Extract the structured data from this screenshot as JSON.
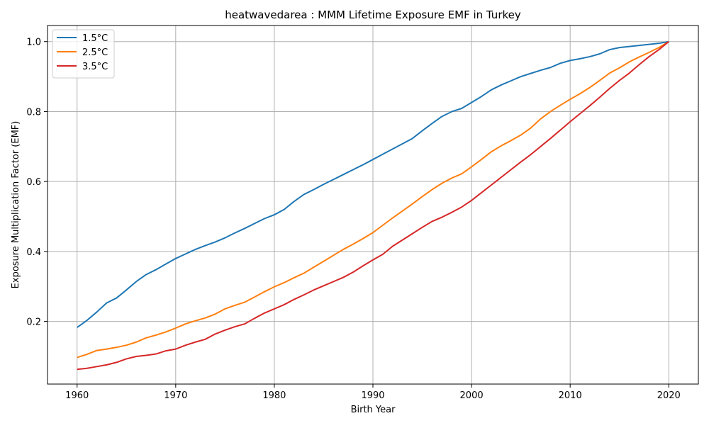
{
  "chart_data": {
    "type": "line",
    "title": "heatwavedarea : MMM Lifetime Exposure EMF in Turkey",
    "xlabel": "Birth Year",
    "ylabel": "Exposure Multiplication Factor (EMF)",
    "xlim": [
      1957,
      2023
    ],
    "ylim": [
      0.021,
      1.046
    ],
    "x_ticks": [
      1960,
      1970,
      1980,
      1990,
      2000,
      2010,
      2020
    ],
    "y_ticks": [
      0.2,
      0.4,
      0.6,
      0.8,
      1.0
    ],
    "x_tick_labels": [
      "1960",
      "1970",
      "1980",
      "1990",
      "2000",
      "2010",
      "2020"
    ],
    "y_tick_labels": [
      "0.2",
      "0.4",
      "0.6",
      "0.8",
      "1.0"
    ],
    "grid": true,
    "legend_position": "top-left",
    "x": [
      1960,
      1961,
      1962,
      1963,
      1964,
      1965,
      1966,
      1967,
      1968,
      1969,
      1970,
      1971,
      1972,
      1973,
      1974,
      1975,
      1976,
      1977,
      1978,
      1979,
      1980,
      1981,
      1982,
      1983,
      1984,
      1985,
      1986,
      1987,
      1988,
      1989,
      1990,
      1991,
      1992,
      1993,
      1994,
      1995,
      1996,
      1997,
      1998,
      1999,
      2000,
      2001,
      2002,
      2003,
      2004,
      2005,
      2006,
      2007,
      2008,
      2009,
      2010,
      2011,
      2012,
      2013,
      2014,
      2015,
      2016,
      2017,
      2018,
      2019,
      2020
    ],
    "series": [
      {
        "name": "1.5°C",
        "color": "#1f77b4",
        "values": [
          0.183,
          0.203,
          0.227,
          0.253,
          0.267,
          0.29,
          0.314,
          0.334,
          0.348,
          0.364,
          0.38,
          0.393,
          0.406,
          0.417,
          0.427,
          0.439,
          0.453,
          0.466,
          0.48,
          0.494,
          0.505,
          0.52,
          0.543,
          0.563,
          0.577,
          0.592,
          0.606,
          0.62,
          0.634,
          0.648,
          0.663,
          0.678,
          0.693,
          0.708,
          0.723,
          0.745,
          0.766,
          0.786,
          0.8,
          0.809,
          0.826,
          0.843,
          0.862,
          0.876,
          0.888,
          0.9,
          0.909,
          0.918,
          0.926,
          0.938,
          0.946,
          0.951,
          0.957,
          0.965,
          0.977,
          0.983,
          0.986,
          0.989,
          0.992,
          0.995,
          1.0
        ]
      },
      {
        "name": "2.5°C",
        "color": "#ff7f0e",
        "values": [
          0.097,
          0.106,
          0.117,
          0.121,
          0.126,
          0.132,
          0.141,
          0.153,
          0.161,
          0.17,
          0.181,
          0.193,
          0.202,
          0.21,
          0.221,
          0.236,
          0.246,
          0.255,
          0.27,
          0.285,
          0.299,
          0.311,
          0.325,
          0.338,
          0.355,
          0.372,
          0.389,
          0.406,
          0.421,
          0.437,
          0.454,
          0.475,
          0.496,
          0.516,
          0.536,
          0.557,
          0.577,
          0.595,
          0.61,
          0.622,
          0.642,
          0.663,
          0.685,
          0.702,
          0.717,
          0.733,
          0.753,
          0.779,
          0.8,
          0.818,
          0.835,
          0.851,
          0.869,
          0.889,
          0.91,
          0.925,
          0.942,
          0.956,
          0.969,
          0.983,
          1.0
        ]
      },
      {
        "name": "3.5°C",
        "color": "#d62728",
        "values": [
          0.063,
          0.066,
          0.071,
          0.076,
          0.083,
          0.093,
          0.1,
          0.103,
          0.107,
          0.116,
          0.121,
          0.132,
          0.141,
          0.149,
          0.164,
          0.175,
          0.185,
          0.193,
          0.209,
          0.224,
          0.236,
          0.248,
          0.263,
          0.276,
          0.29,
          0.302,
          0.314,
          0.326,
          0.341,
          0.359,
          0.376,
          0.392,
          0.415,
          0.433,
          0.451,
          0.469,
          0.486,
          0.498,
          0.512,
          0.527,
          0.546,
          0.568,
          0.59,
          0.612,
          0.634,
          0.656,
          0.677,
          0.7,
          0.723,
          0.747,
          0.771,
          0.794,
          0.817,
          0.841,
          0.866,
          0.889,
          0.91,
          0.934,
          0.957,
          0.977,
          1.0
        ]
      }
    ]
  }
}
